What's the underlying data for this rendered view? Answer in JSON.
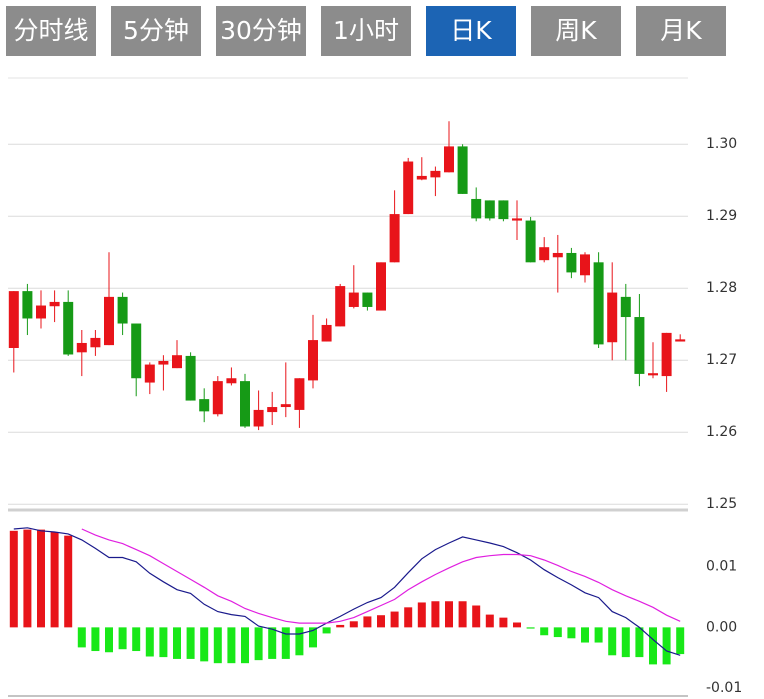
{
  "tabs": [
    {
      "label": "分时线",
      "active": false
    },
    {
      "label": "5分钟",
      "active": false
    },
    {
      "label": "30分钟",
      "active": false
    },
    {
      "label": "1小时",
      "active": false
    },
    {
      "label": "日K",
      "active": true
    },
    {
      "label": "周K",
      "active": false
    },
    {
      "label": "月K",
      "active": false
    }
  ],
  "chart_data": [
    {
      "type": "candlestick",
      "up_color": "#e8141a",
      "down_color": "#169a16",
      "grid": true,
      "ylim": [
        1.2492,
        1.3092
      ],
      "yticks": [
        {
          "value": 1.3,
          "label": "1.30"
        },
        1.29,
        1.28,
        1.27,
        1.26,
        1.25
      ],
      "open": [
        1.2717,
        1.2796,
        1.2758,
        1.2775,
        1.2781,
        1.2711,
        1.2718,
        1.2721,
        1.2788,
        1.2751,
        1.2669,
        1.2694,
        1.2689,
        1.2706,
        1.2646,
        1.2625,
        1.2668,
        1.2671,
        1.2608,
        1.2628,
        1.2635,
        1.2631,
        1.2672,
        1.2726,
        1.2747,
        1.2774,
        1.2794,
        1.2769,
        1.2836,
        1.2903,
        1.2951,
        1.2954,
        1.2961,
        1.2997,
        1.2924,
        1.2922,
        1.2922,
        1.2894,
        1.2894,
        1.2839,
        1.2843,
        1.2849,
        1.2818,
        1.2836,
        1.2725,
        1.2788,
        1.276,
        1.2679,
        1.2678,
        1.2726
      ],
      "high": [
        1.2796,
        1.2806,
        1.2797,
        1.2797,
        1.2797,
        1.2742,
        1.2742,
        1.285,
        1.2794,
        1.2751,
        1.2697,
        1.2707,
        1.2728,
        1.2711,
        1.2661,
        1.2678,
        1.269,
        1.2681,
        1.2658,
        1.2656,
        1.2697,
        1.2675,
        1.2763,
        1.2758,
        1.2806,
        1.2832,
        1.2794,
        1.2836,
        1.2936,
        1.2981,
        1.2982,
        1.2969,
        1.3032,
        1.3,
        1.294,
        1.2922,
        1.2922,
        1.2922,
        1.2899,
        1.2871,
        1.2874,
        1.2856,
        1.285,
        1.285,
        1.2836,
        1.2806,
        1.2792,
        1.2725,
        1.2738,
        1.2736
      ],
      "low": [
        1.2683,
        1.2735,
        1.2744,
        1.2753,
        1.2706,
        1.2678,
        1.2706,
        1.2721,
        1.2735,
        1.265,
        1.2653,
        1.2658,
        1.2689,
        1.2644,
        1.2614,
        1.2622,
        1.2665,
        1.2606,
        1.2603,
        1.261,
        1.2621,
        1.2606,
        1.2661,
        1.2726,
        1.2747,
        1.2772,
        1.2769,
        1.2769,
        1.2836,
        1.2903,
        1.295,
        1.2928,
        1.2961,
        1.2931,
        1.2893,
        1.2894,
        1.2893,
        1.2867,
        1.2836,
        1.2836,
        1.2794,
        1.2814,
        1.2808,
        1.2717,
        1.27,
        1.27,
        1.2664,
        1.2675,
        1.2656,
        1.2726
      ],
      "close": [
        1.2796,
        1.2758,
        1.2776,
        1.2781,
        1.2708,
        1.2724,
        1.2731,
        1.2788,
        1.2751,
        1.2675,
        1.2694,
        1.2699,
        1.2707,
        1.2644,
        1.2629,
        1.2671,
        1.2675,
        1.2608,
        1.2631,
        1.2635,
        1.2639,
        1.2675,
        1.2728,
        1.2749,
        1.2803,
        1.2794,
        1.2774,
        1.2836,
        1.2903,
        1.2976,
        1.2956,
        1.2963,
        1.2997,
        1.2931,
        1.2897,
        1.2897,
        1.2896,
        1.2897,
        1.2836,
        1.2857,
        1.2849,
        1.2822,
        1.2847,
        1.2722,
        1.2794,
        1.276,
        1.2681,
        1.2682,
        1.2738,
        1.2729
      ]
    },
    {
      "type": "macd",
      "up_color": "#e8141a",
      "down_color": "#18e818",
      "ylim": [
        -0.0118,
        0.019
      ],
      "yticks": [
        0.01,
        {
          "value": 0,
          "label": "0.00"
        },
        -0.01
      ],
      "values": [
        0.0159,
        0.0161,
        0.0161,
        0.0157,
        0.0151,
        -0.0033,
        -0.0039,
        -0.0041,
        -0.0036,
        -0.0039,
        -0.0048,
        -0.0049,
        -0.0052,
        -0.0052,
        -0.0056,
        -0.0059,
        -0.0059,
        -0.0059,
        -0.0054,
        -0.0052,
        -0.0052,
        -0.0046,
        -0.0033,
        -0.001,
        0.0004,
        0.001,
        0.0018,
        0.002,
        0.0026,
        0.0033,
        0.0041,
        0.0043,
        0.0043,
        0.0043,
        0.0036,
        0.0021,
        0.0016,
        0.0008,
        -0.0002,
        -0.0013,
        -0.0016,
        -0.0018,
        -0.0025,
        -0.0025,
        -0.0046,
        -0.0049,
        -0.0049,
        -0.0061,
        -0.0061,
        -0.0044
      ],
      "series": [
        {
          "color": "#1a1a8c",
          "values": [
            0.0162,
            0.0164,
            0.0159,
            0.0157,
            0.0154,
            0.0144,
            0.013,
            0.0115,
            0.0115,
            0.0108,
            0.0089,
            0.0075,
            0.0062,
            0.0056,
            0.0038,
            0.0026,
            0.0021,
            0.0018,
            0.0002,
            -0.0003,
            -0.0011,
            -0.0011,
            -0.0005,
            0.0007,
            0.0018,
            0.003,
            0.0041,
            0.0049,
            0.0066,
            0.009,
            0.0113,
            0.0128,
            0.0139,
            0.0149,
            0.0144,
            0.0139,
            0.0133,
            0.0123,
            0.0111,
            0.0095,
            0.0082,
            0.007,
            0.0057,
            0.0049,
            0.0026,
            0.0016,
            0.0,
            -0.002,
            -0.0039,
            -0.0046
          ]
        },
        {
          "color": "#e020e0",
          "values": [
            null,
            null,
            null,
            null,
            null,
            0.0162,
            0.0152,
            0.0144,
            0.0138,
            0.0128,
            0.0118,
            0.0105,
            0.0092,
            0.0079,
            0.0066,
            0.0052,
            0.0043,
            0.0031,
            0.0023,
            0.0016,
            0.001,
            0.0007,
            0.0007,
            0.0007,
            0.001,
            0.0016,
            0.0026,
            0.0036,
            0.0046,
            0.0062,
            0.0075,
            0.0087,
            0.0098,
            0.0108,
            0.0115,
            0.0118,
            0.012,
            0.012,
            0.0118,
            0.0111,
            0.0102,
            0.0092,
            0.0084,
            0.0074,
            0.0062,
            0.0052,
            0.0043,
            0.0033,
            0.002,
            0.001
          ]
        }
      ]
    }
  ]
}
